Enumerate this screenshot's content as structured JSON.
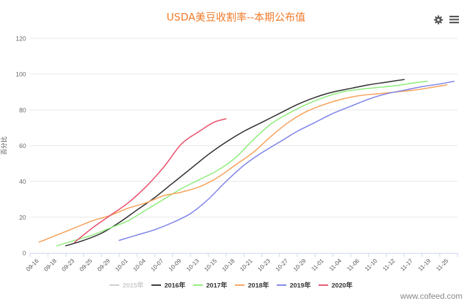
{
  "chart_data": {
    "type": "line",
    "title": "USDA美豆收割率--本期公布值",
    "ylabel": "百分比",
    "xlabel": "",
    "ylim": [
      0,
      120
    ],
    "yticks": [
      0,
      20,
      40,
      60,
      80,
      100,
      120
    ],
    "categories": [
      "09-16",
      "09-18",
      "09-23",
      "09-25",
      "09-29",
      "10-01",
      "10-04",
      "10-07",
      "10-09",
      "10-13",
      "10-15",
      "10-18",
      "10-21",
      "10-23",
      "10-27",
      "10-29",
      "11-01",
      "11-04",
      "11-06",
      "11-10",
      "11-12",
      "11-17",
      "11-19",
      "11-25"
    ],
    "series": [
      {
        "name": "2015年",
        "color": "#cccccc",
        "hidden": true,
        "points": []
      },
      {
        "name": "2016年",
        "color": "#333333",
        "points": [
          [
            1.5,
            4
          ],
          [
            2.5,
            7
          ],
          [
            3.5,
            11
          ],
          [
            4.5,
            17
          ],
          [
            5.5,
            24
          ],
          [
            6.5,
            31
          ],
          [
            7.5,
            39
          ],
          [
            8.5,
            47
          ],
          [
            9.5,
            55
          ],
          [
            10.5,
            62
          ],
          [
            11.5,
            68
          ],
          [
            12.5,
            73
          ],
          [
            13.5,
            78
          ],
          [
            14.5,
            83
          ],
          [
            15.5,
            87
          ],
          [
            16.5,
            90
          ],
          [
            17.5,
            92
          ],
          [
            18.5,
            94
          ],
          [
            19.5,
            95.5
          ],
          [
            20.5,
            97
          ]
        ]
      },
      {
        "name": "2017年",
        "color": "#90ed7d",
        "points": [
          [
            1,
            4
          ],
          [
            2,
            7
          ],
          [
            3,
            10
          ],
          [
            4,
            14
          ],
          [
            5,
            18
          ],
          [
            6,
            24
          ],
          [
            7,
            30
          ],
          [
            8,
            36
          ],
          [
            9,
            41
          ],
          [
            10,
            46
          ],
          [
            11,
            53
          ],
          [
            12,
            63
          ],
          [
            13,
            72
          ],
          [
            14,
            78
          ],
          [
            15,
            83
          ],
          [
            16,
            87
          ],
          [
            17,
            90
          ],
          [
            18,
            91.5
          ],
          [
            19,
            92.5
          ],
          [
            20,
            93.5
          ],
          [
            21,
            95
          ],
          [
            21.8,
            96
          ]
        ]
      },
      {
        "name": "2018年",
        "color": "#f7a35c",
        "points": [
          [
            0,
            6
          ],
          [
            1,
            10
          ],
          [
            2,
            14
          ],
          [
            3,
            18
          ],
          [
            4,
            21
          ],
          [
            5,
            25
          ],
          [
            6,
            28
          ],
          [
            7,
            32
          ],
          [
            8,
            34
          ],
          [
            9,
            37
          ],
          [
            10,
            42
          ],
          [
            11,
            49
          ],
          [
            12,
            56
          ],
          [
            13,
            65
          ],
          [
            14,
            73
          ],
          [
            15,
            79
          ],
          [
            16,
            83
          ],
          [
            17,
            86
          ],
          [
            18,
            88
          ],
          [
            19,
            89
          ],
          [
            20,
            90
          ],
          [
            21,
            91
          ],
          [
            22,
            92.5
          ],
          [
            22.9,
            94
          ]
        ]
      },
      {
        "name": "2019年",
        "color": "#8085e9",
        "points": [
          [
            4.5,
            7
          ],
          [
            5.5,
            10
          ],
          [
            6.5,
            13
          ],
          [
            7.5,
            17
          ],
          [
            8.5,
            22
          ],
          [
            9.5,
            30
          ],
          [
            10.5,
            40
          ],
          [
            11.5,
            49
          ],
          [
            12.5,
            56
          ],
          [
            13.5,
            62
          ],
          [
            14.5,
            68
          ],
          [
            15.5,
            73
          ],
          [
            16.5,
            78
          ],
          [
            17.5,
            82
          ],
          [
            18.5,
            86
          ],
          [
            19.5,
            89
          ],
          [
            20.5,
            91
          ],
          [
            21.5,
            93
          ],
          [
            22.5,
            94.5
          ],
          [
            23.3,
            96
          ]
        ]
      },
      {
        "name": "2020年",
        "color": "#e8546f",
        "points": [
          [
            2,
            6
          ],
          [
            3,
            14
          ],
          [
            4,
            21
          ],
          [
            5,
            28
          ],
          [
            6,
            37
          ],
          [
            7,
            48
          ],
          [
            8,
            61
          ],
          [
            9,
            68
          ],
          [
            9.8,
            73
          ],
          [
            10.5,
            75
          ]
        ]
      }
    ],
    "legend_position": "bottom-center",
    "grid": "horizontal"
  },
  "toolbar": {
    "gear_icon": "gear-icon",
    "menu_icon": "menu-icon"
  },
  "watermark": "www.cofeed.com"
}
